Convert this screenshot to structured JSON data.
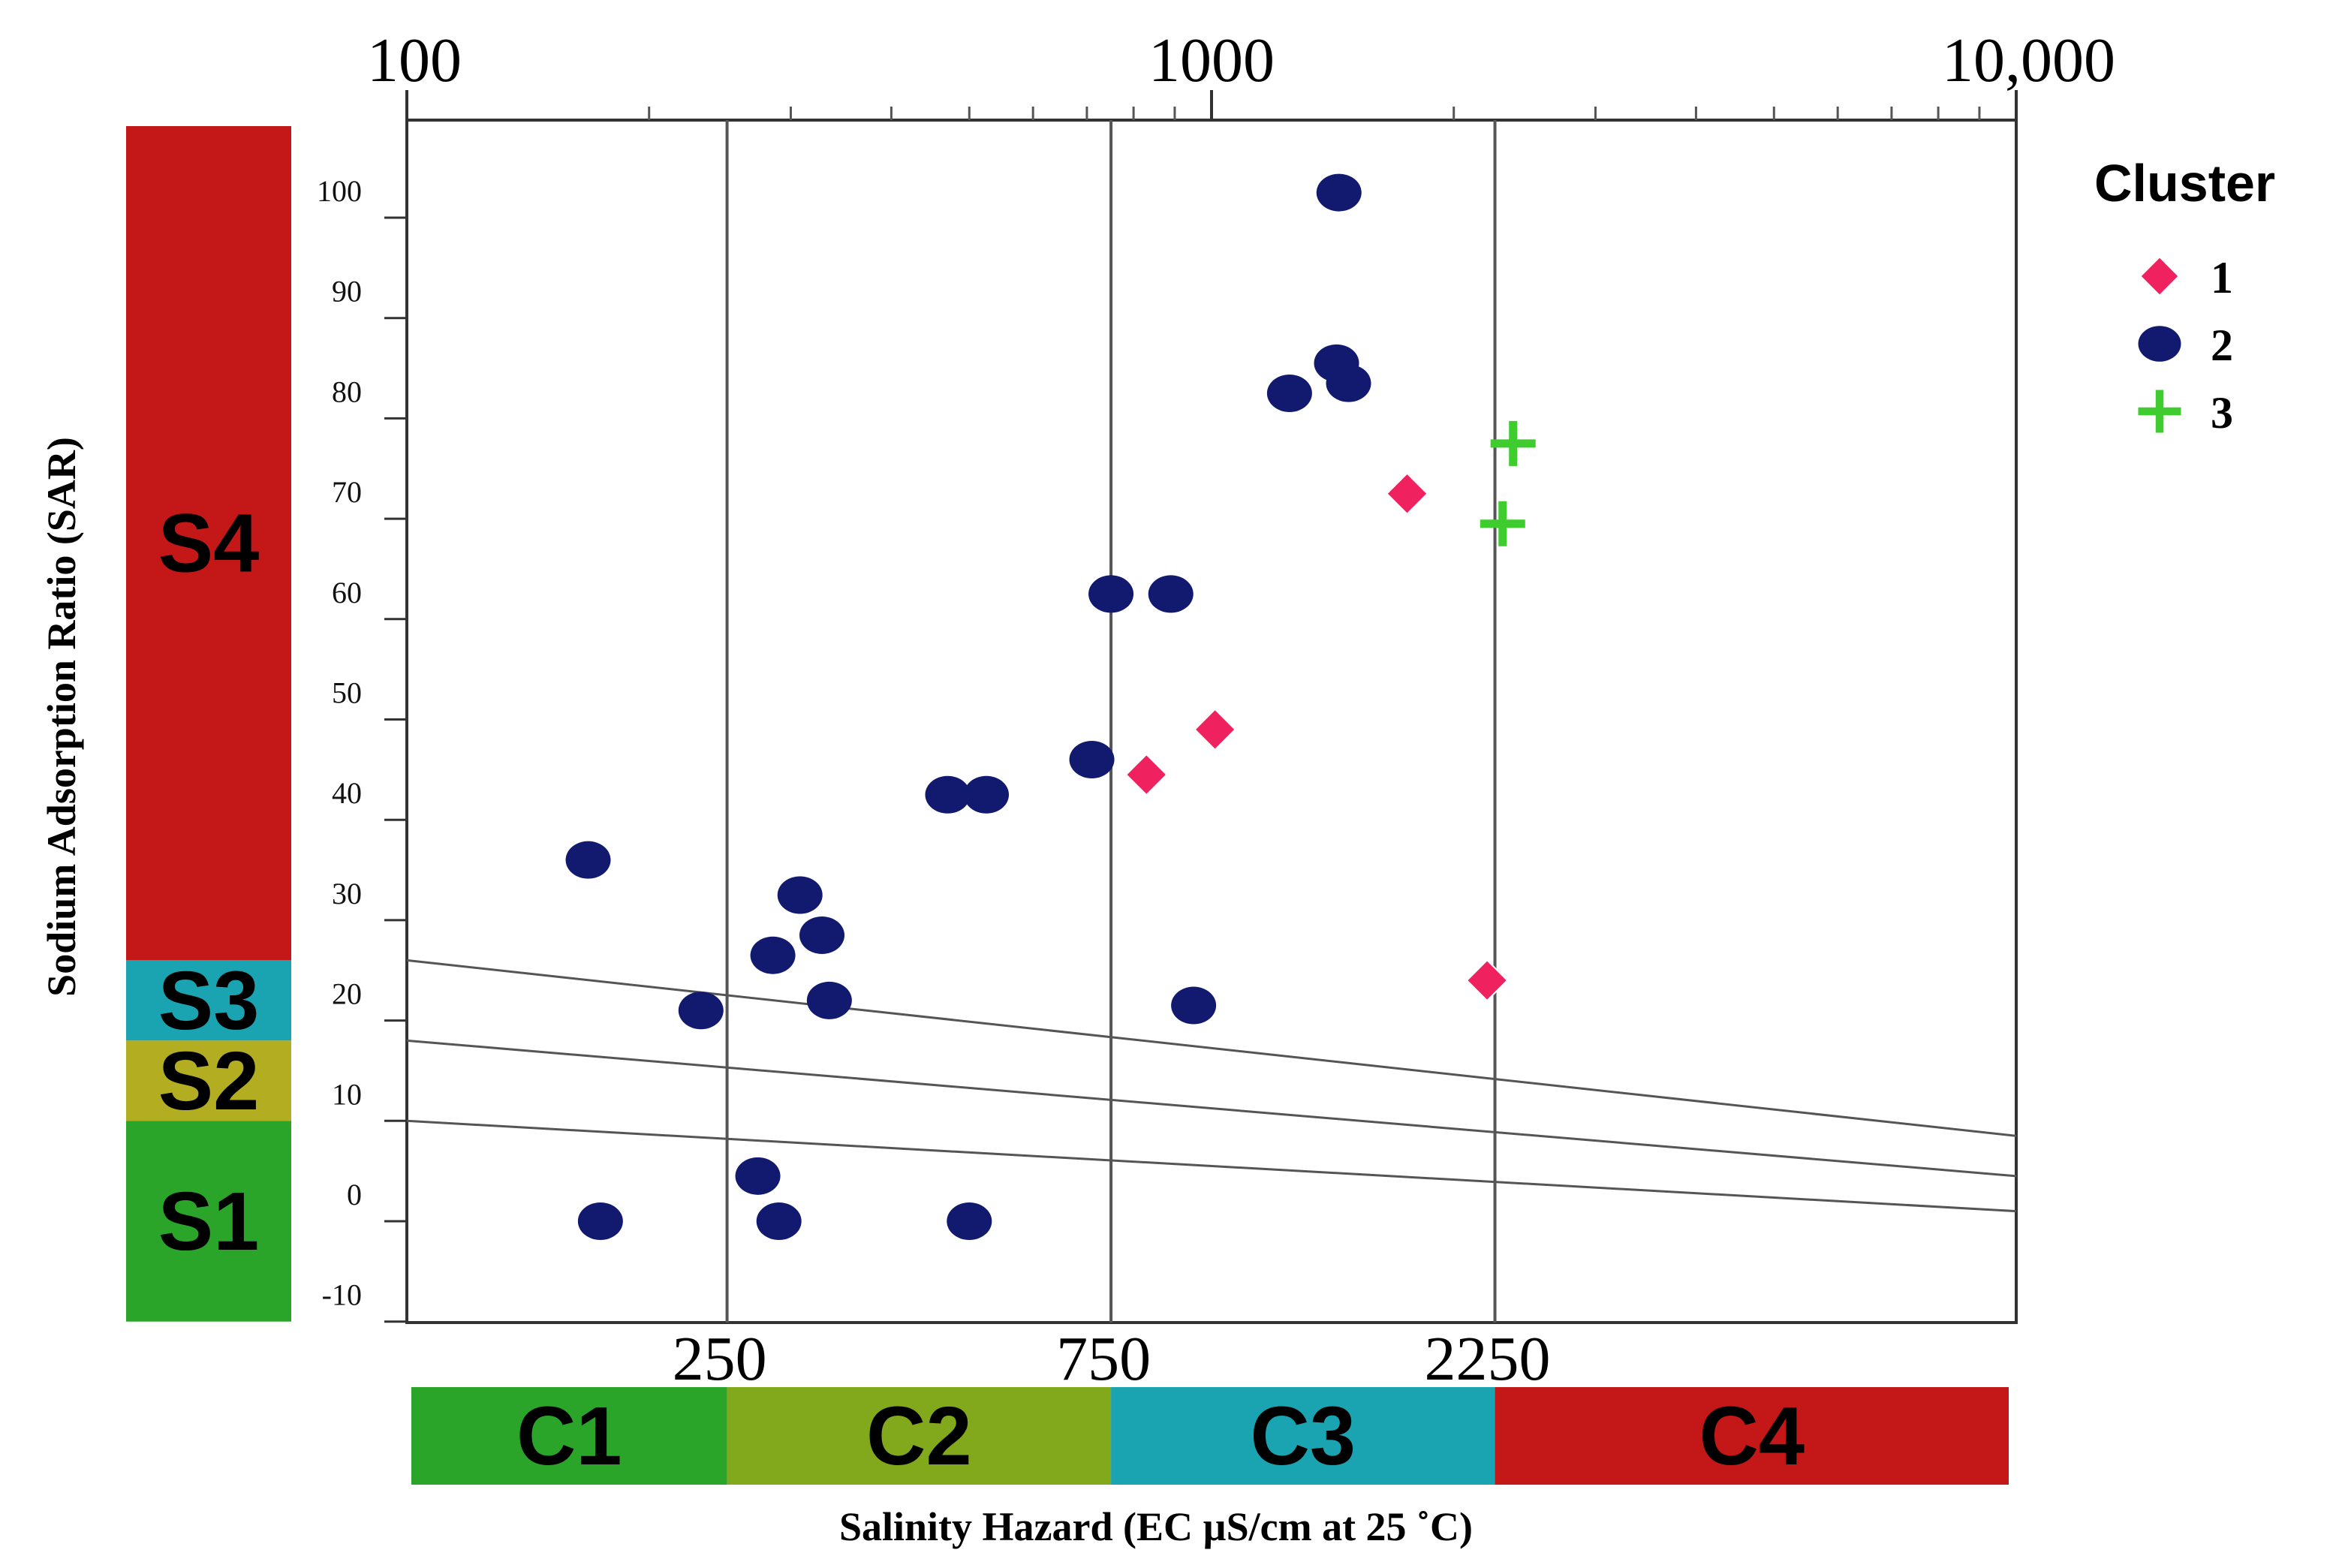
{
  "chart_data": {
    "type": "scatter",
    "title": "",
    "xlabel": "Salinity Hazard  (EC µS/cm at 25 ˚C)",
    "ylabel": "Sodium Adsorption Ratio (SAR)",
    "x_scale": "log",
    "xlim": [
      100,
      10000
    ],
    "ylim": [
      -10,
      105
    ],
    "grid": false,
    "x_top_tick_labels": [
      {
        "value": 100,
        "label": "100"
      },
      {
        "value": 1000,
        "label": "1000"
      },
      {
        "value": 10000,
        "label": "10,000"
      }
    ],
    "x_bottom_tick_labels": [
      {
        "value": 250,
        "label": "250"
      },
      {
        "value": 750,
        "label": "750"
      },
      {
        "value": 2250,
        "label": "2250"
      }
    ],
    "y_ticks": [
      {
        "value": 100,
        "label": "100"
      },
      {
        "value": 90,
        "label": "90"
      },
      {
        "value": 80,
        "label": "80"
      },
      {
        "value": 70,
        "label": "70"
      },
      {
        "value": 60,
        "label": "60"
      },
      {
        "value": 50,
        "label": "50"
      },
      {
        "value": 40,
        "label": "40"
      },
      {
        "value": 30,
        "label": "30"
      },
      {
        "value": 20,
        "label": "20"
      },
      {
        "value": 10,
        "label": "10"
      },
      {
        "value": 0,
        "label": "0"
      },
      {
        "value": -10,
        "label": "-10"
      }
    ],
    "vertical_reference_lines": [
      250,
      750,
      2250
    ],
    "class_boundary_lines": [
      {
        "x": [
          100,
          10000
        ],
        "y": [
          26,
          8.5
        ]
      },
      {
        "x": [
          100,
          10000
        ],
        "y": [
          18,
          4.5
        ]
      },
      {
        "x": [
          100,
          10000
        ],
        "y": [
          10,
          1
        ]
      }
    ],
    "salinity_classes": [
      {
        "label": "C1",
        "from": 100,
        "to": 250,
        "color": "#2aa52a"
      },
      {
        "label": "C2",
        "from": 250,
        "to": 750,
        "color": "#82a81c"
      },
      {
        "label": "C3",
        "from": 750,
        "to": 2250,
        "color": "#1aa3b0"
      },
      {
        "label": "C4",
        "from": 2250,
        "to": 10000,
        "color": "#c41717"
      }
    ],
    "sodium_classes": [
      {
        "label": "S4",
        "from": 26,
        "to": 110,
        "color": "#c41717"
      },
      {
        "label": "S3",
        "from": 18,
        "to": 26,
        "color": "#1aa3b0"
      },
      {
        "label": "S2",
        "from": 10,
        "to": 18,
        "color": "#b3ad22"
      },
      {
        "label": "S1",
        "from": -10,
        "to": 10,
        "color": "#2aa52a"
      }
    ],
    "legend": {
      "title": "Cluster",
      "position": "top-right"
    },
    "series": [
      {
        "name": "1",
        "marker": "diamond",
        "color": "#f0215f",
        "points": [
          {
            "x": 1750,
            "y": 72.5
          },
          {
            "x": 1010,
            "y": 49
          },
          {
            "x": 830,
            "y": 44.5
          },
          {
            "x": 2200,
            "y": 24
          }
        ]
      },
      {
        "name": "2",
        "marker": "circle",
        "color": "#111a6e",
        "points": [
          {
            "x": 1440,
            "y": 102.5
          },
          {
            "x": 1430,
            "y": 85.5
          },
          {
            "x": 1480,
            "y": 83.5
          },
          {
            "x": 1250,
            "y": 82.5
          },
          {
            "x": 750,
            "y": 62.5
          },
          {
            "x": 890,
            "y": 62.5
          },
          {
            "x": 710,
            "y": 46
          },
          {
            "x": 470,
            "y": 42.5
          },
          {
            "x": 525,
            "y": 42.5
          },
          {
            "x": 168,
            "y": 36
          },
          {
            "x": 308,
            "y": 32.5
          },
          {
            "x": 328,
            "y": 28.5
          },
          {
            "x": 285,
            "y": 26.5
          },
          {
            "x": 335,
            "y": 22
          },
          {
            "x": 232,
            "y": 21
          },
          {
            "x": 950,
            "y": 21.5
          },
          {
            "x": 273,
            "y": 4.5
          },
          {
            "x": 174,
            "y": 0
          },
          {
            "x": 290,
            "y": 0
          },
          {
            "x": 500,
            "y": 0
          }
        ]
      },
      {
        "name": "3",
        "marker": "plus",
        "color": "#3fcc2f",
        "points": [
          {
            "x": 2370,
            "y": 77.5
          },
          {
            "x": 2300,
            "y": 69.5
          }
        ]
      }
    ]
  }
}
